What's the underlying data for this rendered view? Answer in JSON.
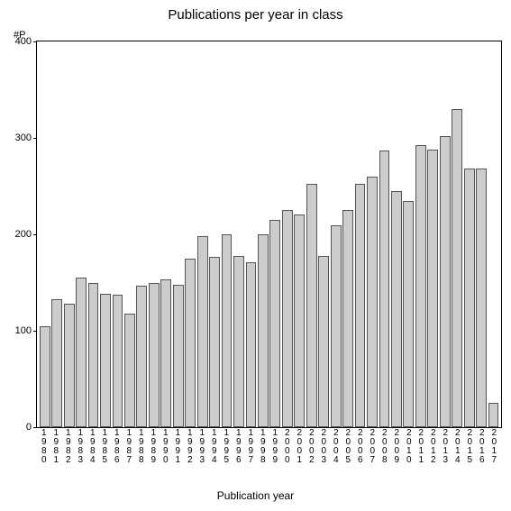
{
  "chart": {
    "type": "bar",
    "title": "Publications per year in class",
    "title_fontsize": 15,
    "y_axis_title": "#P",
    "x_axis_title": "Publication year",
    "label_fontsize": 12,
    "tick_fontsize": 11,
    "background_color": "#ffffff",
    "bar_fill": "#cccccc",
    "bar_border": "#555555",
    "axis_color": "#000000",
    "ylim": [
      0,
      400
    ],
    "yticks": [
      0,
      100,
      200,
      300,
      400
    ],
    "bar_width": 0.88,
    "categories": [
      "1980",
      "1981",
      "1982",
      "1983",
      "1984",
      "1985",
      "1986",
      "1987",
      "1988",
      "1989",
      "1990",
      "1991",
      "1992",
      "1993",
      "1994",
      "1995",
      "1996",
      "1997",
      "1998",
      "1999",
      "2000",
      "2001",
      "2002",
      "2003",
      "2004",
      "2005",
      "2006",
      "2007",
      "2008",
      "2009",
      "2010",
      "2011",
      "2012",
      "2013",
      "2014",
      "2015",
      "2016",
      "2017"
    ],
    "values": [
      105,
      133,
      128,
      155,
      150,
      138,
      137,
      118,
      147,
      150,
      153,
      148,
      175,
      198,
      177,
      200,
      178,
      171,
      200,
      215,
      225,
      221,
      252,
      178,
      209,
      225,
      252,
      260,
      287,
      245,
      235,
      293,
      288,
      302,
      330,
      268,
      268,
      25
    ]
  }
}
